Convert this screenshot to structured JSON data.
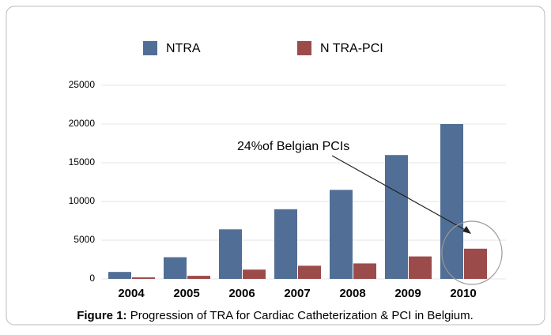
{
  "chart_data": {
    "type": "bar",
    "categories": [
      "2004",
      "2005",
      "2006",
      "2007",
      "2008",
      "2009",
      "2010"
    ],
    "series": [
      {
        "name": "NTRA",
        "color": "#516f96",
        "values": [
          900,
          2800,
          6400,
          9000,
          11500,
          16000,
          20000
        ]
      },
      {
        "name": "N TRA-PCI",
        "color": "#9c4b4b",
        "values": [
          200,
          400,
          1200,
          1700,
          2000,
          2900,
          3900
        ]
      }
    ],
    "ylim": [
      0,
      25000
    ],
    "yticks": [
      0,
      5000,
      10000,
      15000,
      20000,
      25000
    ],
    "grid": true,
    "annotation": "24%of Belgian PCIs",
    "caption": {
      "label": "Figure 1:",
      "text": " Progression of TRA for Cardiac Catheterization & PCI in Belgium."
    }
  }
}
